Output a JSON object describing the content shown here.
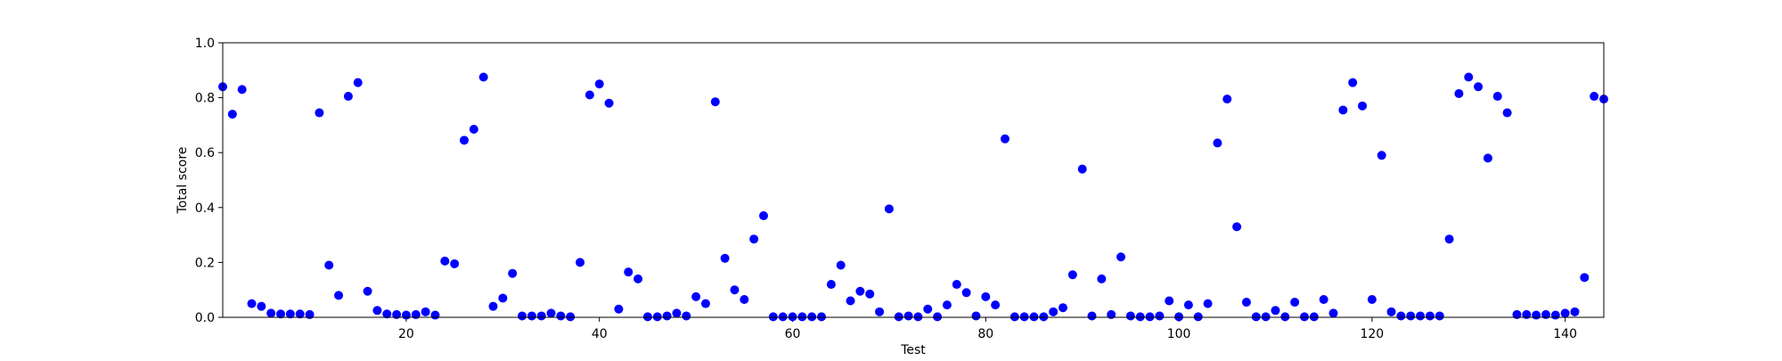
{
  "chart_data": {
    "type": "scatter",
    "title": "",
    "xlabel": "Test",
    "ylabel": "Total score",
    "xlim": [
      1,
      144
    ],
    "ylim": [
      0.0,
      1.0
    ],
    "xticks": [
      20,
      40,
      60,
      80,
      100,
      120,
      140
    ],
    "xtick_labels": [
      "20",
      "40",
      "60",
      "80",
      "100",
      "120",
      "140"
    ],
    "yticks": [
      0.0,
      0.2,
      0.4,
      0.6,
      0.8,
      1.0
    ],
    "ytick_labels": [
      "0.0",
      "0.2",
      "0.4",
      "0.6",
      "0.8",
      "1.0"
    ],
    "grid": false,
    "marker_color": "#0000ff",
    "x": [
      1,
      2,
      3,
      4,
      5,
      6,
      7,
      8,
      9,
      10,
      11,
      12,
      13,
      14,
      15,
      16,
      17,
      18,
      19,
      20,
      21,
      22,
      23,
      24,
      25,
      26,
      27,
      28,
      29,
      30,
      31,
      32,
      33,
      34,
      35,
      36,
      37,
      38,
      39,
      40,
      41,
      42,
      43,
      44,
      45,
      46,
      47,
      48,
      49,
      50,
      51,
      52,
      53,
      54,
      55,
      56,
      57,
      58,
      59,
      60,
      61,
      62,
      63,
      64,
      65,
      66,
      67,
      68,
      69,
      70,
      71,
      72,
      73,
      74,
      75,
      76,
      77,
      78,
      79,
      80,
      81,
      82,
      83,
      84,
      85,
      86,
      87,
      88,
      89,
      90,
      91,
      92,
      93,
      94,
      95,
      96,
      97,
      98,
      99,
      100,
      101,
      102,
      103,
      104,
      105,
      106,
      107,
      108,
      109,
      110,
      111,
      112,
      113,
      114,
      115,
      116,
      117,
      118,
      119,
      120,
      121,
      122,
      123,
      124,
      125,
      126,
      127,
      128,
      129,
      130,
      131,
      132,
      133,
      134,
      135,
      136,
      137,
      138,
      139,
      140,
      141,
      142,
      143,
      144
    ],
    "y": [
      0.84,
      0.74,
      0.83,
      0.05,
      0.04,
      0.015,
      0.012,
      0.012,
      0.012,
      0.01,
      0.745,
      0.19,
      0.08,
      0.805,
      0.855,
      0.095,
      0.025,
      0.012,
      0.01,
      0.008,
      0.01,
      0.02,
      0.008,
      0.205,
      0.195,
      0.645,
      0.685,
      0.875,
      0.04,
      0.07,
      0.16,
      0.005,
      0.005,
      0.005,
      0.015,
      0.005,
      0.002,
      0.2,
      0.81,
      0.85,
      0.78,
      0.03,
      0.165,
      0.14,
      0.002,
      0.002,
      0.005,
      0.015,
      0.005,
      0.075,
      0.05,
      0.785,
      0.215,
      0.1,
      0.065,
      0.285,
      0.37,
      0.002,
      0.002,
      0.002,
      0.002,
      0.002,
      0.002,
      0.12,
      0.19,
      0.06,
      0.095,
      0.085,
      0.02,
      0.395,
      0.002,
      0.005,
      0.002,
      0.03,
      0.002,
      0.045,
      0.12,
      0.09,
      0.005,
      0.075,
      0.045,
      0.65,
      0.002,
      0.002,
      0.002,
      0.002,
      0.02,
      0.035,
      0.155,
      0.54,
      0.005,
      0.14,
      0.01,
      0.22,
      0.005,
      0.002,
      0.002,
      0.005,
      0.06,
      0.002,
      0.045,
      0.002,
      0.05,
      0.635,
      0.795,
      0.33,
      0.055,
      0.002,
      0.002,
      0.025,
      0.002,
      0.055,
      0.002,
      0.002,
      0.065,
      0.015,
      0.755,
      0.855,
      0.77,
      0.065,
      0.59,
      0.02,
      0.005,
      0.005,
      0.005,
      0.005,
      0.005,
      0.285,
      0.815,
      0.875,
      0.84,
      0.58,
      0.805,
      0.745,
      0.01,
      0.01,
      0.008,
      0.01,
      0.008,
      0.015,
      0.02,
      0.145,
      0.805,
      0.795
    ]
  }
}
